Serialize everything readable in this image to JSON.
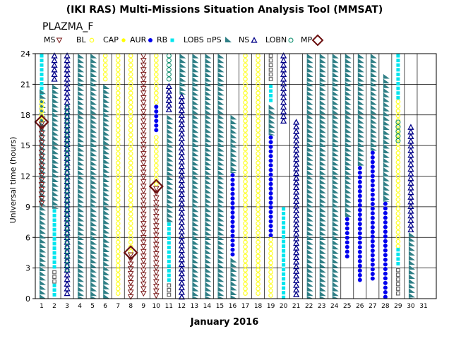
{
  "title": "(IKI RAS) Multi-Missions Situation Analysis Tool (MMSAT)",
  "subtitle": "PLAZMA_F",
  "colors": {
    "MS": "#7b1a1a",
    "BL": "#ffff33",
    "CAP": "#ffff00",
    "AUR": "#0000ee",
    "RB": "#00e5ee",
    "LOBS": "#666666",
    "PS": "#2f7f86",
    "NS": "#000088",
    "LOBN": "#008866",
    "MP": "#6b0f0f"
  },
  "chart_data": {
    "type": "scatter",
    "xlabel": "January 2016",
    "ylabel": "Universal time (hours)",
    "ylim": [
      0,
      24
    ],
    "yticks": [
      0,
      3,
      6,
      9,
      12,
      15,
      18,
      21,
      24
    ],
    "xlim": [
      1,
      31
    ],
    "days": [
      1,
      2,
      3,
      4,
      5,
      6,
      7,
      8,
      9,
      10,
      11,
      12,
      13,
      14,
      15,
      16,
      17,
      18,
      19,
      20,
      21,
      22,
      23,
      24,
      25,
      26,
      27,
      28,
      29,
      30,
      31
    ],
    "grid": true,
    "legend": {
      "placement": "top",
      "entries": [
        {
          "label": "MS",
          "symbol": "triangle-down-open"
        },
        {
          "label": "BL",
          "symbol": "circle-open"
        },
        {
          "label": "CAP",
          "symbol": "circle-filled"
        },
        {
          "label": "AUR",
          "symbol": "circle-filled"
        },
        {
          "label": "RB",
          "symbol": "square-filled"
        },
        {
          "label": "LOBS",
          "symbol": "square-open"
        },
        {
          "label": "PS",
          "symbol": "sawtooth"
        },
        {
          "label": "NS",
          "symbol": "triangle-up-open"
        },
        {
          "label": "LOBN",
          "symbol": "circle-open"
        },
        {
          "label": "MP",
          "symbol": "diamond"
        }
      ]
    },
    "columns": [
      {
        "day": 1.5,
        "segments": [
          {
            "r": "RB",
            "from": 20.0,
            "to": 24.0
          },
          {
            "r": "PS",
            "from": 0.0,
            "to": 20.5
          },
          {
            "r": "BL",
            "from": 17.3,
            "to": 19.5
          },
          {
            "r": "MS",
            "from": 9.0,
            "to": 17.3
          }
        ]
      },
      {
        "day": 2.5,
        "segments": [
          {
            "r": "NS",
            "from": 21.0,
            "to": 24.0
          },
          {
            "r": "PS",
            "from": 8.8,
            "to": 21.0
          },
          {
            "r": "RB",
            "from": 2.8,
            "to": 8.8
          },
          {
            "r": "LOBS",
            "from": 1.5,
            "to": 2.8
          },
          {
            "r": "RB",
            "from": 0.0,
            "to": 1.5
          }
        ]
      },
      {
        "day": 3.5,
        "segments": [
          {
            "r": "NS",
            "from": 0.0,
            "to": 24.0
          },
          {
            "r": "LOBN",
            "from": 2.5,
            "to": 19.0
          }
        ]
      },
      {
        "day": 4.5,
        "segments": [
          {
            "r": "PS",
            "from": 0.0,
            "to": 24.0
          }
        ]
      },
      {
        "day": 5.5,
        "segments": [
          {
            "r": "PS",
            "from": 0.0,
            "to": 24.0
          }
        ]
      },
      {
        "day": 6.5,
        "segments": [
          {
            "r": "BL",
            "from": 21.0,
            "to": 24.0
          },
          {
            "r": "PS",
            "from": 0.0,
            "to": 21.0
          }
        ]
      },
      {
        "day": 7.5,
        "segments": [
          {
            "r": "BL",
            "from": 0.0,
            "to": 24.0
          }
        ]
      },
      {
        "day": 8.5,
        "segments": [
          {
            "r": "BL",
            "from": 4.5,
            "to": 24.0
          },
          {
            "r": "MS",
            "from": 0.0,
            "to": 4.5
          }
        ]
      },
      {
        "day": 9.5,
        "segments": [
          {
            "r": "MS",
            "from": 0.0,
            "to": 24.0
          }
        ]
      },
      {
        "day": 10.5,
        "segments": [
          {
            "r": "BL",
            "from": 19.0,
            "to": 24.0
          },
          {
            "r": "AUR",
            "from": 16.0,
            "to": 19.0
          },
          {
            "r": "BL",
            "from": 11.0,
            "to": 16.0
          },
          {
            "r": "MS",
            "from": 0.0,
            "to": 11.0
          }
        ]
      },
      {
        "day": 11.5,
        "segments": [
          {
            "r": "LOBN",
            "from": 21.0,
            "to": 24.0
          },
          {
            "r": "NS",
            "from": 18.0,
            "to": 21.0
          },
          {
            "r": "PS",
            "from": 7.5,
            "to": 18.0
          },
          {
            "r": "RB",
            "from": 1.5,
            "to": 7.5
          },
          {
            "r": "LOBS",
            "from": 0.0,
            "to": 1.5
          }
        ]
      },
      {
        "day": 12.5,
        "segments": [
          {
            "r": "PS",
            "from": 20.0,
            "to": 24.0
          },
          {
            "r": "NS",
            "from": 0.0,
            "to": 20.0
          }
        ]
      },
      {
        "day": 13.5,
        "segments": [
          {
            "r": "PS",
            "from": 0.0,
            "to": 24.0
          }
        ]
      },
      {
        "day": 14.5,
        "segments": [
          {
            "r": "PS",
            "from": 0.0,
            "to": 24.0
          }
        ]
      },
      {
        "day": 15.5,
        "segments": [
          {
            "r": "PS",
            "from": 0.0,
            "to": 24.0
          }
        ]
      },
      {
        "day": 16.5,
        "segments": [
          {
            "r": "PS",
            "from": 12.3,
            "to": 18.0
          },
          {
            "r": "AUR",
            "from": 4.0,
            "to": 12.3
          },
          {
            "r": "PS",
            "from": 0.0,
            "to": 4.0
          }
        ]
      },
      {
        "day": 17.5,
        "segments": [
          {
            "r": "BL",
            "from": 0.0,
            "to": 24.0
          }
        ]
      },
      {
        "day": 18.5,
        "segments": [
          {
            "r": "BL",
            "from": 0.0,
            "to": 24.0
          }
        ]
      },
      {
        "day": 19.5,
        "segments": [
          {
            "r": "LOBS",
            "from": 21.0,
            "to": 24.0
          },
          {
            "r": "RB",
            "from": 19.0,
            "to": 21.0
          },
          {
            "r": "PS",
            "from": 16.0,
            "to": 19.0
          },
          {
            "r": "AUR",
            "from": 6.0,
            "to": 16.0
          },
          {
            "r": "BL",
            "from": 0.0,
            "to": 6.0
          }
        ]
      },
      {
        "day": 20.5,
        "segments": [
          {
            "r": "NS",
            "from": 17.0,
            "to": 24.0
          },
          {
            "r": "RB",
            "from": 0.0,
            "to": 9.0
          }
        ]
      },
      {
        "day": 21.5,
        "segments": [
          {
            "r": "NS",
            "from": 0.0,
            "to": 17.5
          }
        ]
      },
      {
        "day": 22.5,
        "segments": [
          {
            "r": "PS",
            "from": 0.0,
            "to": 24.0
          }
        ]
      },
      {
        "day": 23.5,
        "segments": [
          {
            "r": "PS",
            "from": 0.0,
            "to": 24.0
          }
        ]
      },
      {
        "day": 24.5,
        "segments": [
          {
            "r": "PS",
            "from": 0.0,
            "to": 24.0
          }
        ]
      },
      {
        "day": 25.5,
        "segments": [
          {
            "r": "PS",
            "from": 8.0,
            "to": 24.0
          },
          {
            "r": "AUR",
            "from": 4.0,
            "to": 8.0
          }
        ]
      },
      {
        "day": 26.5,
        "segments": [
          {
            "r": "PS",
            "from": 13.0,
            "to": 24.0
          },
          {
            "r": "AUR",
            "from": 1.5,
            "to": 13.0
          }
        ]
      },
      {
        "day": 27.5,
        "segments": [
          {
            "r": "PS",
            "from": 14.5,
            "to": 24.0
          },
          {
            "r": "AUR",
            "from": 1.5,
            "to": 14.5
          }
        ]
      },
      {
        "day": 28.5,
        "segments": [
          {
            "r": "PS",
            "from": 9.5,
            "to": 22.0
          },
          {
            "r": "AUR",
            "from": 0.0,
            "to": 9.5
          }
        ]
      },
      {
        "day": 29.5,
        "segments": [
          {
            "r": "RB",
            "from": 19.5,
            "to": 24.0
          },
          {
            "r": "BL",
            "from": 5.0,
            "to": 19.5
          },
          {
            "r": "LOBN",
            "from": 15.0,
            "to": 17.5
          },
          {
            "r": "RB",
            "from": 3.0,
            "to": 5.0
          },
          {
            "r": "LOBS",
            "from": 0.0,
            "to": 3.0
          }
        ]
      },
      {
        "day": 30.5,
        "segments": [
          {
            "r": "NS",
            "from": 6.5,
            "to": 17.0
          },
          {
            "r": "PS",
            "from": 0.0,
            "to": 6.5
          }
        ]
      }
    ],
    "mp_markers": [
      {
        "day": 1.5,
        "hour": 17.3
      },
      {
        "day": 8.5,
        "hour": 4.5
      },
      {
        "day": 10.5,
        "hour": 11.0
      }
    ]
  }
}
